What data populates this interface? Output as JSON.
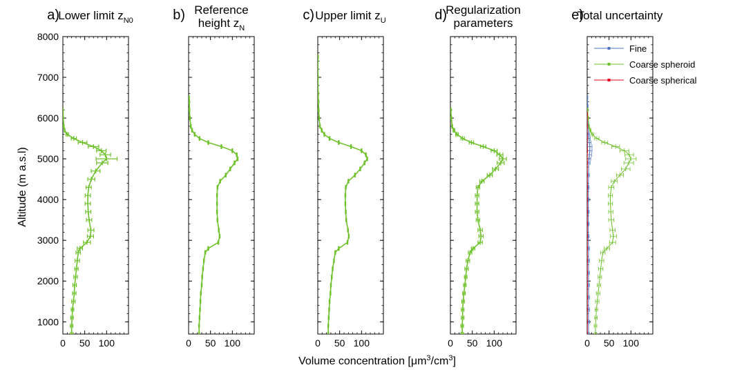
{
  "figure": {
    "ylabel": "Altitude (m a.s.l)",
    "xlabel_parts": [
      "Volume concentration [",
      "μm",
      "3",
      "/cm",
      "3",
      "]"
    ],
    "yticks": [
      "8000",
      "7000",
      "6000",
      "5000",
      "4000",
      "3000",
      "2000",
      "1000"
    ],
    "xticks": [
      "0",
      "50",
      "100"
    ]
  },
  "colors": {
    "green": "#6ec12b",
    "blue": "#4f73bd",
    "red": "#e8001c",
    "black": "#000000"
  },
  "panels": [
    {
      "letter": "a)",
      "title_lines": [
        "Lower limit z"
      ],
      "subscript": "N0"
    },
    {
      "letter": "b)",
      "title_lines": [
        "Reference",
        "height z"
      ],
      "subscript": "N"
    },
    {
      "letter": "c)",
      "title_lines": [
        "Upper limit z"
      ],
      "subscript": "U"
    },
    {
      "letter": "d)",
      "title_lines": [
        "Regularization",
        "parameters"
      ],
      "subscript": ""
    },
    {
      "letter": "e)",
      "title_lines": [
        "Total uncertainty"
      ],
      "subscript": ""
    }
  ],
  "legend": [
    "Fine",
    "Coarse spheroid",
    "Coarse spherical"
  ],
  "chart_data": [
    {
      "type": "line",
      "panel": "a",
      "xlabel": "Volume concentration [μm3/cm3]",
      "ylabel": "Altitude (m a.s.l)",
      "xlim": [
        0,
        150
      ],
      "ylim": [
        700,
        8000
      ],
      "series": [
        {
          "y": [
            700,
            900,
            1100,
            1300,
            1500,
            1700,
            1900,
            2100,
            2300,
            2500,
            2700,
            2800,
            2950,
            3100,
            3250,
            3500,
            3700,
            3900,
            4100,
            4300,
            4500,
            4700,
            4900,
            5000,
            5100,
            5200,
            5300,
            5400,
            5500,
            5600,
            5700,
            5800,
            6000,
            6200
          ],
          "x": [
            20,
            20,
            21,
            22,
            24,
            26,
            27,
            29,
            31,
            33,
            35,
            39,
            55,
            63,
            64,
            60,
            58,
            57,
            57,
            59,
            65,
            75,
            90,
            100,
            97,
            88,
            70,
            45,
            25,
            10,
            4,
            2,
            1,
            0.5
          ],
          "xerr": [
            3,
            3,
            3,
            3,
            4,
            4,
            4,
            4,
            4,
            5,
            5,
            6,
            8,
            7,
            7,
            6,
            6,
            6,
            6,
            6,
            8,
            10,
            13,
            24,
            12,
            11,
            12,
            10,
            6,
            3,
            1,
            1,
            0.5,
            0.5
          ]
        }
      ]
    },
    {
      "type": "line",
      "panel": "b",
      "xlabel": "Volume concentration [μm3/cm3]",
      "ylabel": "Altitude (m a.s.l)",
      "xlim": [
        0,
        150
      ],
      "ylim": [
        700,
        8000
      ],
      "series": [
        {
          "y": [
            700,
            900,
            1100,
            1300,
            1500,
            1700,
            1900,
            2100,
            2300,
            2500,
            2700,
            2800,
            2950,
            3100,
            3250,
            3500,
            3700,
            3900,
            4100,
            4300,
            4450,
            4600,
            4750,
            4900,
            5000,
            5100,
            5200,
            5300,
            5400,
            5500,
            5600,
            5700,
            5800,
            6000,
            6200,
            6400,
            6500
          ],
          "x": [
            24,
            24,
            25,
            26,
            27,
            28,
            30,
            31,
            33,
            35,
            38,
            45,
            68,
            71,
            69,
            66,
            65,
            65,
            65,
            66,
            72,
            85,
            95,
            105,
            112,
            110,
            100,
            75,
            45,
            25,
            14,
            8,
            5,
            3,
            2,
            1.5,
            1
          ],
          "xerr": [
            1,
            1,
            1,
            1,
            1,
            1,
            1,
            1,
            1,
            1,
            1,
            1,
            1,
            1,
            1,
            1,
            1,
            1,
            1,
            1,
            1,
            1,
            1,
            1,
            1,
            1,
            1,
            1,
            1,
            1,
            1,
            1,
            1,
            1,
            1,
            1,
            1
          ]
        }
      ]
    },
    {
      "type": "line",
      "panel": "c",
      "xlabel": "Volume concentration [μm3/cm3]",
      "ylabel": "Altitude (m a.s.l)",
      "xlim": [
        0,
        150
      ],
      "ylim": [
        700,
        8000
      ],
      "series": [
        {
          "y": [
            700,
            900,
            1100,
            1300,
            1500,
            1700,
            1900,
            2100,
            2300,
            2500,
            2700,
            2800,
            2950,
            3100,
            3250,
            3500,
            3700,
            3900,
            4100,
            4300,
            4450,
            4600,
            4750,
            4900,
            5000,
            5100,
            5200,
            5300,
            5400,
            5500,
            5600,
            5700,
            5800,
            6000,
            6200,
            6400,
            6600,
            7000,
            7500
          ],
          "x": [
            24,
            24,
            25,
            26,
            27,
            29,
            30,
            32,
            34,
            37,
            40,
            48,
            68,
            71,
            69,
            65,
            64,
            63,
            63,
            64,
            70,
            85,
            97,
            107,
            113,
            110,
            100,
            76,
            48,
            27,
            15,
            9,
            5,
            3,
            2,
            1.5,
            1,
            0.5,
            0.5
          ],
          "xerr": [
            1,
            1,
            1,
            1,
            1,
            1,
            1,
            1,
            1,
            1,
            1,
            1,
            1,
            1,
            1,
            1,
            1,
            1,
            1,
            1,
            1,
            1,
            1,
            1,
            1,
            1,
            1,
            1,
            1,
            1,
            1,
            1,
            1,
            1,
            1,
            1,
            1,
            1,
            1
          ]
        }
      ]
    },
    {
      "type": "line",
      "panel": "d",
      "xlabel": "Volume concentration [μm3/cm3]",
      "ylabel": "Altitude (m a.s.l)",
      "xlim": [
        0,
        150
      ],
      "ylim": [
        700,
        8000
      ],
      "series": [
        {
          "y": [
            700,
            900,
            1100,
            1300,
            1500,
            1700,
            1900,
            2100,
            2300,
            2500,
            2700,
            2800,
            2950,
            3100,
            3250,
            3500,
            3700,
            3900,
            4100,
            4300,
            4450,
            4600,
            4750,
            4900,
            5000,
            5100,
            5200,
            5300,
            5400,
            5500,
            5600,
            5700,
            5800,
            6000,
            6200
          ],
          "x": [
            27,
            27,
            28,
            28,
            29,
            31,
            33,
            35,
            37,
            40,
            45,
            52,
            68,
            70,
            68,
            63,
            61,
            61,
            61,
            63,
            72,
            90,
            103,
            115,
            120,
            113,
            100,
            75,
            48,
            28,
            15,
            8,
            4,
            2,
            1
          ],
          "xerr": [
            3,
            3,
            3,
            3,
            3,
            3,
            3,
            3,
            4,
            4,
            4,
            4,
            5,
            5,
            5,
            4,
            4,
            4,
            4,
            4,
            5,
            6,
            7,
            8,
            8,
            7,
            7,
            6,
            5,
            4,
            3,
            2,
            1,
            1,
            1
          ]
        }
      ]
    },
    {
      "type": "line",
      "panel": "e",
      "xlabel": "Volume concentration [μm3/cm3]",
      "ylabel": "Altitude (m a.s.l)",
      "xlim": [
        0,
        150
      ],
      "ylim": [
        700,
        8000
      ],
      "series": [
        {
          "name": "Fine",
          "y": [
            700,
            1000,
            1300,
            1600,
            1900,
            2200,
            2500,
            2800,
            3100,
            3400,
            3700,
            4000,
            4300,
            4600,
            4900,
            5000,
            5100,
            5200,
            5300,
            5400,
            5500,
            5600,
            5800,
            6000,
            6300,
            6500
          ],
          "x": [
            3,
            3,
            3,
            3,
            3,
            3,
            3,
            3,
            2.5,
            2.5,
            2.5,
            2.5,
            2.5,
            3,
            3.5,
            4,
            5,
            6,
            6,
            5,
            4,
            3,
            2,
            1.5,
            1,
            0.5
          ],
          "xerr": [
            2,
            2,
            2,
            2,
            2,
            2,
            2,
            2,
            2,
            2,
            2,
            2,
            2,
            2,
            3,
            4,
            5,
            5,
            5,
            4,
            3,
            2,
            2,
            1,
            1,
            1
          ]
        },
        {
          "name": "Coarse spheroid",
          "y": [
            700,
            900,
            1100,
            1300,
            1500,
            1700,
            1900,
            2100,
            2300,
            2500,
            2700,
            2800,
            2950,
            3100,
            3250,
            3500,
            3700,
            3900,
            4100,
            4300,
            4450,
            4600,
            4750,
            4900,
            5000,
            5100,
            5200,
            5300,
            5400,
            5500,
            5600,
            5700,
            5800,
            6000,
            6200
          ],
          "x": [
            19,
            19,
            20,
            21,
            23,
            25,
            27,
            29,
            31,
            33,
            36,
            45,
            58,
            60,
            58,
            55,
            54,
            53,
            53,
            55,
            62,
            75,
            88,
            95,
            100,
            96,
            85,
            65,
            40,
            22,
            12,
            7,
            4,
            2,
            1
          ],
          "xerr": [
            3,
            3,
            3,
            3,
            4,
            4,
            4,
            4,
            5,
            5,
            5,
            6,
            7,
            7,
            6,
            6,
            5,
            5,
            5,
            6,
            7,
            8,
            10,
            11,
            12,
            10,
            10,
            9,
            7,
            5,
            3,
            2,
            1,
            1,
            1
          ]
        },
        {
          "name": "Coarse spherical",
          "y": [
            700,
            1000,
            1300,
            1600,
            1900,
            2200,
            2500,
            2800,
            3100,
            3400,
            3700,
            4000,
            4300,
            4600,
            4900,
            5200,
            5500,
            5800,
            6100
          ],
          "x": [
            0.3,
            0.3,
            0.3,
            0.3,
            0.3,
            0.3,
            0.3,
            0.3,
            0.3,
            0.3,
            0.3,
            0.3,
            0.3,
            0.3,
            0.3,
            0.3,
            0.2,
            0.2,
            0.1
          ],
          "xerr": [
            0.5,
            0.5,
            0.5,
            0.5,
            0.5,
            0.5,
            0.5,
            0.5,
            0.5,
            0.5,
            0.5,
            0.5,
            0.5,
            0.5,
            0.5,
            0.5,
            0.5,
            0.5,
            0.5
          ]
        }
      ]
    }
  ]
}
